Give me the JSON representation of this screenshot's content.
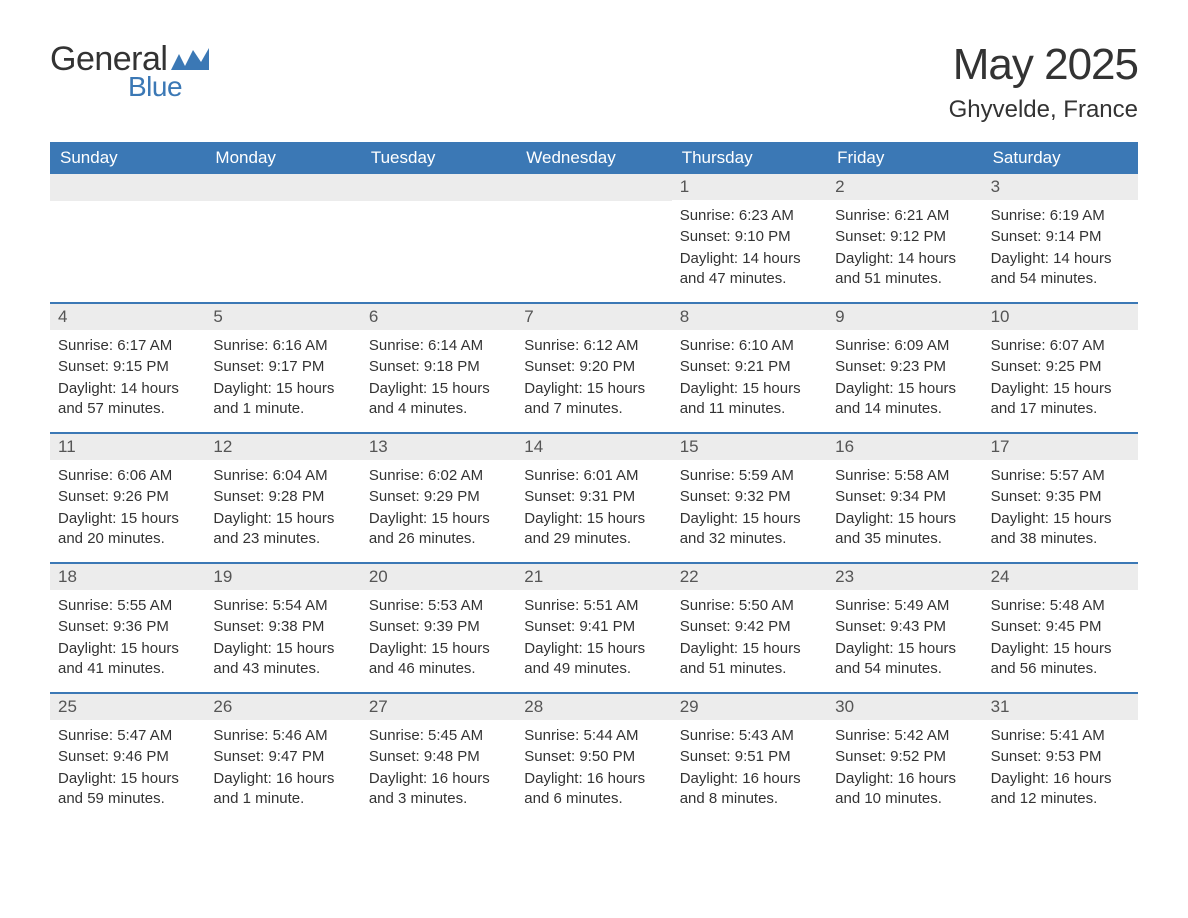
{
  "brand": {
    "text1": "General",
    "text2": "Blue",
    "color_dark": "#333333",
    "color_blue": "#3b78b5"
  },
  "title": "May 2025",
  "subtitle": "Ghyvelde, France",
  "header_bg": "#3b78b5",
  "header_text_color": "#ffffff",
  "daynum_bg": "#ececec",
  "border_color": "#3b78b5",
  "weekdays": [
    "Sunday",
    "Monday",
    "Tuesday",
    "Wednesday",
    "Thursday",
    "Friday",
    "Saturday"
  ],
  "weeks": [
    [
      null,
      null,
      null,
      null,
      {
        "n": "1",
        "sunrise": "6:23 AM",
        "sunset": "9:10 PM",
        "daylight": "14 hours and 47 minutes."
      },
      {
        "n": "2",
        "sunrise": "6:21 AM",
        "sunset": "9:12 PM",
        "daylight": "14 hours and 51 minutes."
      },
      {
        "n": "3",
        "sunrise": "6:19 AM",
        "sunset": "9:14 PM",
        "daylight": "14 hours and 54 minutes."
      }
    ],
    [
      {
        "n": "4",
        "sunrise": "6:17 AM",
        "sunset": "9:15 PM",
        "daylight": "14 hours and 57 minutes."
      },
      {
        "n": "5",
        "sunrise": "6:16 AM",
        "sunset": "9:17 PM",
        "daylight": "15 hours and 1 minute."
      },
      {
        "n": "6",
        "sunrise": "6:14 AM",
        "sunset": "9:18 PM",
        "daylight": "15 hours and 4 minutes."
      },
      {
        "n": "7",
        "sunrise": "6:12 AM",
        "sunset": "9:20 PM",
        "daylight": "15 hours and 7 minutes."
      },
      {
        "n": "8",
        "sunrise": "6:10 AM",
        "sunset": "9:21 PM",
        "daylight": "15 hours and 11 minutes."
      },
      {
        "n": "9",
        "sunrise": "6:09 AM",
        "sunset": "9:23 PM",
        "daylight": "15 hours and 14 minutes."
      },
      {
        "n": "10",
        "sunrise": "6:07 AM",
        "sunset": "9:25 PM",
        "daylight": "15 hours and 17 minutes."
      }
    ],
    [
      {
        "n": "11",
        "sunrise": "6:06 AM",
        "sunset": "9:26 PM",
        "daylight": "15 hours and 20 minutes."
      },
      {
        "n": "12",
        "sunrise": "6:04 AM",
        "sunset": "9:28 PM",
        "daylight": "15 hours and 23 minutes."
      },
      {
        "n": "13",
        "sunrise": "6:02 AM",
        "sunset": "9:29 PM",
        "daylight": "15 hours and 26 minutes."
      },
      {
        "n": "14",
        "sunrise": "6:01 AM",
        "sunset": "9:31 PM",
        "daylight": "15 hours and 29 minutes."
      },
      {
        "n": "15",
        "sunrise": "5:59 AM",
        "sunset": "9:32 PM",
        "daylight": "15 hours and 32 minutes."
      },
      {
        "n": "16",
        "sunrise": "5:58 AM",
        "sunset": "9:34 PM",
        "daylight": "15 hours and 35 minutes."
      },
      {
        "n": "17",
        "sunrise": "5:57 AM",
        "sunset": "9:35 PM",
        "daylight": "15 hours and 38 minutes."
      }
    ],
    [
      {
        "n": "18",
        "sunrise": "5:55 AM",
        "sunset": "9:36 PM",
        "daylight": "15 hours and 41 minutes."
      },
      {
        "n": "19",
        "sunrise": "5:54 AM",
        "sunset": "9:38 PM",
        "daylight": "15 hours and 43 minutes."
      },
      {
        "n": "20",
        "sunrise": "5:53 AM",
        "sunset": "9:39 PM",
        "daylight": "15 hours and 46 minutes."
      },
      {
        "n": "21",
        "sunrise": "5:51 AM",
        "sunset": "9:41 PM",
        "daylight": "15 hours and 49 minutes."
      },
      {
        "n": "22",
        "sunrise": "5:50 AM",
        "sunset": "9:42 PM",
        "daylight": "15 hours and 51 minutes."
      },
      {
        "n": "23",
        "sunrise": "5:49 AM",
        "sunset": "9:43 PM",
        "daylight": "15 hours and 54 minutes."
      },
      {
        "n": "24",
        "sunrise": "5:48 AM",
        "sunset": "9:45 PM",
        "daylight": "15 hours and 56 minutes."
      }
    ],
    [
      {
        "n": "25",
        "sunrise": "5:47 AM",
        "sunset": "9:46 PM",
        "daylight": "15 hours and 59 minutes."
      },
      {
        "n": "26",
        "sunrise": "5:46 AM",
        "sunset": "9:47 PM",
        "daylight": "16 hours and 1 minute."
      },
      {
        "n": "27",
        "sunrise": "5:45 AM",
        "sunset": "9:48 PM",
        "daylight": "16 hours and 3 minutes."
      },
      {
        "n": "28",
        "sunrise": "5:44 AM",
        "sunset": "9:50 PM",
        "daylight": "16 hours and 6 minutes."
      },
      {
        "n": "29",
        "sunrise": "5:43 AM",
        "sunset": "9:51 PM",
        "daylight": "16 hours and 8 minutes."
      },
      {
        "n": "30",
        "sunrise": "5:42 AM",
        "sunset": "9:52 PM",
        "daylight": "16 hours and 10 minutes."
      },
      {
        "n": "31",
        "sunrise": "5:41 AM",
        "sunset": "9:53 PM",
        "daylight": "16 hours and 12 minutes."
      }
    ]
  ],
  "labels": {
    "sunrise": "Sunrise:",
    "sunset": "Sunset:",
    "daylight": "Daylight:"
  }
}
